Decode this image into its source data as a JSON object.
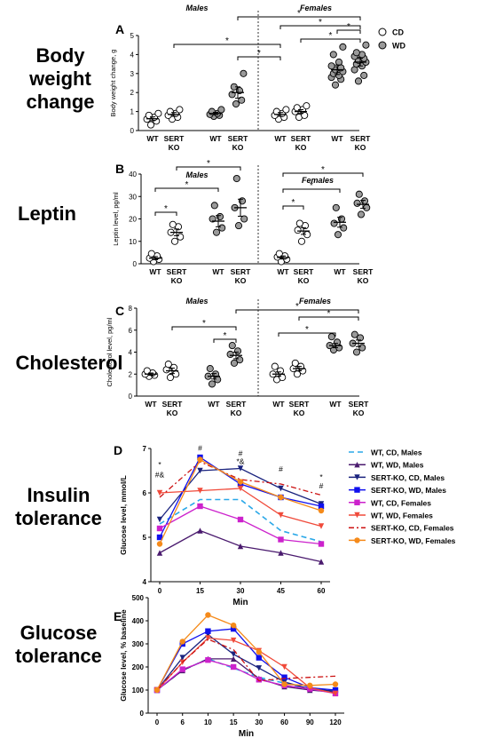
{
  "row_labels": [
    "Body\nweight\nchange",
    "Leptin",
    "Cholesterol",
    "Insulin\ntolerance",
    "Glucose\ntolerance"
  ],
  "legend_scatter": [
    {
      "label": "CD",
      "color": "#ffffff"
    },
    {
      "label": "WD",
      "color": "#9a9a9a"
    }
  ],
  "colors": {
    "cd_fill": "#ffffff",
    "wd_fill": "#9a9a9a",
    "mean_line": "#000000"
  },
  "chart_data": [
    {
      "type": "scatter",
      "panel": "A",
      "ylabel": "Body weight change, g",
      "ylim": [
        0,
        5
      ],
      "yticks": [
        0,
        1,
        2,
        3,
        4,
        5
      ],
      "group_headers": [
        "Males",
        "Females"
      ],
      "xlabels": [
        [
          "WT"
        ],
        [
          "SERT",
          "KO"
        ],
        [
          "WT"
        ],
        [
          "SERT",
          "KO"
        ],
        [
          "WT"
        ],
        [
          "SERT",
          "KO"
        ],
        [
          "WT"
        ],
        [
          "SERT",
          "KO"
        ]
      ],
      "groups": [
        {
          "diet": "CD",
          "values": [
            0.3,
            0.5,
            0.6,
            0.7,
            0.8,
            0.9
          ],
          "mean": 0.62,
          "sem": 0.1
        },
        {
          "diet": "CD",
          "values": [
            0.6,
            0.7,
            0.8,
            0.9,
            1.0,
            1.1
          ],
          "mean": 0.85,
          "sem": 0.1
        },
        {
          "diet": "WD",
          "values": [
            0.75,
            0.8,
            0.85,
            0.9,
            1.0,
            1.1
          ],
          "mean": 0.9,
          "sem": 0.06
        },
        {
          "diet": "WD",
          "values": [
            1.4,
            1.6,
            1.9,
            2.1,
            2.3,
            3.0
          ],
          "mean": 2.0,
          "sem": 0.3
        },
        {
          "diet": "CD",
          "values": [
            0.6,
            0.7,
            0.8,
            0.9,
            1.0,
            1.1
          ],
          "mean": 0.85,
          "sem": 0.1
        },
        {
          "diet": "CD",
          "values": [
            0.7,
            0.8,
            1.0,
            1.1,
            1.2,
            1.3
          ],
          "mean": 1.0,
          "sem": 0.1
        },
        {
          "diet": "WD",
          "values": [
            2.4,
            2.7,
            2.8,
            2.9,
            3.0,
            3.1,
            3.2,
            3.3,
            3.4,
            3.6,
            4.0,
            4.4
          ],
          "mean": 3.2,
          "sem": 0.25
        },
        {
          "diet": "WD",
          "values": [
            2.6,
            2.9,
            3.2,
            3.4,
            3.5,
            3.6,
            3.7,
            3.8,
            3.9,
            4.0,
            4.1,
            4.5
          ],
          "mean": 3.6,
          "sem": 0.2
        }
      ],
      "brackets": [
        {
          "from": 3,
          "to": 4,
          "level": 0,
          "label": "*"
        },
        {
          "from": 6,
          "to": 7,
          "level": 0,
          "label": "*"
        },
        {
          "from": 5,
          "to": 7,
          "level": 1,
          "label": "*"
        },
        {
          "from": 1,
          "to": 4,
          "level": 1,
          "label": "*"
        },
        {
          "from": 4,
          "to": 7,
          "level": 2,
          "label": "*"
        },
        {
          "from": 3,
          "to": 7,
          "level": 3,
          "label": "*"
        }
      ]
    },
    {
      "type": "scatter",
      "panel": "B",
      "ylabel": "Leptin level, pg/ml",
      "ylim": [
        0,
        40
      ],
      "yticks": [
        0,
        10,
        20,
        30,
        40
      ],
      "group_headers": [
        "Males",
        "Females"
      ],
      "xlabels": [
        [
          "WT"
        ],
        [
          "SERT",
          "KO"
        ],
        [
          "WT"
        ],
        [
          "SERT",
          "KO"
        ],
        [
          "WT"
        ],
        [
          "SERT",
          "KO"
        ],
        [
          "WT"
        ],
        [
          "SERT",
          "KO"
        ]
      ],
      "groups": [
        {
          "diet": "CD",
          "values": [
            1.0,
            2.0,
            2.5,
            3.5,
            4.5
          ],
          "mean": 2.5,
          "sem": 0.7
        },
        {
          "diet": "CD",
          "values": [
            10.0,
            12.0,
            14.0,
            16.5,
            17.5
          ],
          "mean": 14.0,
          "sem": 1.5
        },
        {
          "diet": "WD",
          "values": [
            14.0,
            16.0,
            20.0,
            21.0,
            26.0
          ],
          "mean": 19.0,
          "sem": 2.5
        },
        {
          "diet": "WD",
          "values": [
            17.0,
            20.0,
            25.0,
            28.0,
            38.0
          ],
          "mean": 25.0,
          "sem": 3.8
        },
        {
          "diet": "CD",
          "values": [
            1.0,
            2.0,
            3.0,
            3.5,
            4.5
          ],
          "mean": 2.8,
          "sem": 0.7
        },
        {
          "diet": "CD",
          "values": [
            10.0,
            13.0,
            15.0,
            17.0,
            18.0
          ],
          "mean": 14.6,
          "sem": 1.5
        },
        {
          "diet": "WD",
          "values": [
            13.0,
            16.0,
            18.0,
            20.0,
            25.0
          ],
          "mean": 18.5,
          "sem": 2.2
        },
        {
          "diet": "WD",
          "values": [
            22.0,
            25.0,
            27.0,
            28.0,
            31.0
          ],
          "mean": 26.5,
          "sem": 1.8
        }
      ],
      "brackets": [
        {
          "from": 0,
          "to": 1,
          "level": 0,
          "label": "*"
        },
        {
          "from": 4,
          "to": 5,
          "level": 0,
          "label": "*"
        },
        {
          "from": 0,
          "to": 2,
          "level": 1,
          "label": "*"
        },
        {
          "from": 4,
          "to": 6,
          "level": 1,
          "label": "*"
        },
        {
          "from": 1,
          "to": 3,
          "level": 2,
          "label": "*"
        },
        {
          "from": 4,
          "to": 7,
          "level": 2,
          "label": "*"
        }
      ]
    },
    {
      "type": "scatter",
      "panel": "C",
      "ylabel": "Cholesterol level, pg/ml",
      "ylim": [
        0,
        8
      ],
      "yticks": [
        0,
        2,
        4,
        6,
        8
      ],
      "group_headers": [
        "Males",
        "Females"
      ],
      "xlabels": [
        [
          "WT"
        ],
        [
          "SERT",
          "KO"
        ],
        [
          "WT"
        ],
        [
          "SERT",
          "KO"
        ],
        [
          "WT"
        ],
        [
          "SERT",
          "KO"
        ],
        [
          "WT"
        ],
        [
          "SERT",
          "KO"
        ]
      ],
      "groups": [
        {
          "diet": "CD",
          "values": [
            1.8,
            1.9,
            2.0,
            2.1,
            2.3
          ],
          "mean": 2.0,
          "sem": 0.1
        },
        {
          "diet": "CD",
          "values": [
            1.7,
            2.0,
            2.4,
            2.6,
            2.9
          ],
          "mean": 2.3,
          "sem": 0.25
        },
        {
          "diet": "WD",
          "values": [
            1.1,
            1.5,
            1.8,
            2.0,
            2.5
          ],
          "mean": 1.8,
          "sem": 0.25
        },
        {
          "diet": "WD",
          "values": [
            3.0,
            3.3,
            3.8,
            4.1,
            4.6
          ],
          "mean": 3.7,
          "sem": 0.3
        },
        {
          "diet": "CD",
          "values": [
            1.5,
            1.7,
            2.0,
            2.3,
            2.7
          ],
          "mean": 2.0,
          "sem": 0.2
        },
        {
          "diet": "CD",
          "values": [
            2.0,
            2.3,
            2.5,
            2.7,
            3.0
          ],
          "mean": 2.5,
          "sem": 0.2
        },
        {
          "diet": "WD",
          "values": [
            4.2,
            4.4,
            4.6,
            4.9,
            5.4
          ],
          "mean": 4.6,
          "sem": 0.2
        },
        {
          "diet": "WD",
          "values": [
            4.0,
            4.4,
            4.8,
            5.3,
            5.6
          ],
          "mean": 4.8,
          "sem": 0.3
        }
      ],
      "brackets": [
        {
          "from": 2,
          "to": 3,
          "level": 0,
          "label": "*"
        },
        {
          "from": 4,
          "to": 6,
          "level": 0,
          "label": "*"
        },
        {
          "from": 1,
          "to": 3,
          "level": 1,
          "label": "*"
        },
        {
          "from": 5,
          "to": 7,
          "level": 1,
          "label": "*"
        },
        {
          "from": 3,
          "to": 7,
          "level": 2,
          "label": "*"
        }
      ]
    },
    {
      "type": "line",
      "panel": "D",
      "xlabel": "Min",
      "ylabel": "Glucose level, mmol/L",
      "x": [
        0,
        15,
        30,
        45,
        60
      ],
      "ylim": [
        4,
        7
      ],
      "yticks": [
        4,
        5,
        6,
        7
      ],
      "series": [
        {
          "name": "WT, CD, Males",
          "color": "#2aa8e8",
          "dash": "6,4",
          "marker": "none",
          "values": [
            5.3,
            5.85,
            5.85,
            5.15,
            4.9
          ]
        },
        {
          "name": "WT, WD, Males",
          "color": "#4a1a6e",
          "dash": "",
          "marker": "triangle-up",
          "values": [
            4.65,
            5.15,
            4.8,
            4.65,
            4.45
          ]
        },
        {
          "name": "SERT-KO, CD, Males",
          "color": "#1a237e",
          "dash": "",
          "marker": "triangle-down",
          "values": [
            5.4,
            6.5,
            6.55,
            6.1,
            5.75
          ]
        },
        {
          "name": "SERT-KO, WD, Males",
          "color": "#1010ee",
          "dash": "",
          "marker": "square",
          "values": [
            5.0,
            6.8,
            6.2,
            5.9,
            5.7
          ]
        },
        {
          "name": "WT, CD, Females",
          "color": "#cc22cc",
          "dash": "",
          "marker": "square",
          "values": [
            5.2,
            5.7,
            5.4,
            4.95,
            4.85
          ]
        },
        {
          "name": "WT, WD, Females",
          "color": "#f04a3a",
          "dash": "",
          "marker": "triangle-down",
          "values": [
            6.0,
            6.05,
            6.1,
            5.5,
            5.25
          ]
        },
        {
          "name": "SERT-KO, CD, Females",
          "color": "#cc1111",
          "dash": "6,3,2,3",
          "marker": "none",
          "values": [
            5.9,
            6.7,
            6.3,
            6.2,
            5.95
          ]
        },
        {
          "name": "SERT-KO, WD, Females",
          "color": "#f58a1a",
          "dash": "",
          "marker": "circle",
          "values": [
            4.85,
            6.75,
            6.25,
            5.9,
            5.6
          ]
        }
      ],
      "annotations": [
        {
          "x": 0,
          "text": "*",
          "y": 6.58
        },
        {
          "x": 0,
          "text": "#&",
          "y": 6.35
        },
        {
          "x": 15,
          "text": "#",
          "y": 6.95
        },
        {
          "x": 30,
          "text": "#",
          "y": 6.83
        },
        {
          "x": 30,
          "text": "*&",
          "y": 6.65
        },
        {
          "x": 45,
          "text": "#",
          "y": 6.48
        },
        {
          "x": 60,
          "text": "*",
          "y": 6.3
        },
        {
          "x": 60,
          "text": "#",
          "y": 6.1
        }
      ]
    },
    {
      "type": "line",
      "panel": "E",
      "xlabel": "Min",
      "ylabel": "Glucose level, % baseline",
      "x": [
        0,
        6,
        10,
        15,
        30,
        60,
        90,
        120
      ],
      "ylim": [
        0,
        500
      ],
      "yticks": [
        0,
        100,
        200,
        300,
        400,
        500
      ],
      "series": [
        {
          "name": "WT, CD, Males",
          "color": "#2aa8e8",
          "dash": "6,4",
          "marker": "none",
          "values": [
            100,
            185,
            235,
            195,
            155,
            130,
            105,
            95
          ]
        },
        {
          "name": "WT, WD, Males",
          "color": "#4a1a6e",
          "dash": "",
          "marker": "triangle-up",
          "values": [
            100,
            185,
            235,
            235,
            150,
            115,
            100,
            90
          ]
        },
        {
          "name": "SERT-KO, CD, Males",
          "color": "#1a237e",
          "dash": "",
          "marker": "triangle-down",
          "values": [
            100,
            240,
            340,
            255,
            195,
            135,
            105,
            95
          ]
        },
        {
          "name": "SERT-KO, WD, Males",
          "color": "#1010ee",
          "dash": "",
          "marker": "square",
          "values": [
            100,
            300,
            355,
            365,
            240,
            155,
            110,
            100
          ]
        },
        {
          "name": "WT, CD, Females",
          "color": "#cc22cc",
          "dash": "",
          "marker": "square",
          "values": [
            100,
            190,
            230,
            200,
            145,
            120,
            105,
            85
          ]
        },
        {
          "name": "WT, WD, Females",
          "color": "#f04a3a",
          "dash": "",
          "marker": "triangle-down",
          "values": [
            100,
            220,
            325,
            315,
            270,
            200,
            110,
            85
          ]
        },
        {
          "name": "SERT-KO, CD, Females",
          "color": "#cc1111",
          "dash": "6,3,2,3",
          "marker": "none",
          "values": [
            100,
            220,
            320,
            275,
            140,
            150,
            155,
            160
          ]
        },
        {
          "name": "SERT-KO, WD, Females",
          "color": "#f58a1a",
          "dash": "",
          "marker": "circle",
          "values": [
            100,
            310,
            425,
            380,
            265,
            125,
            120,
            125
          ]
        }
      ]
    }
  ]
}
